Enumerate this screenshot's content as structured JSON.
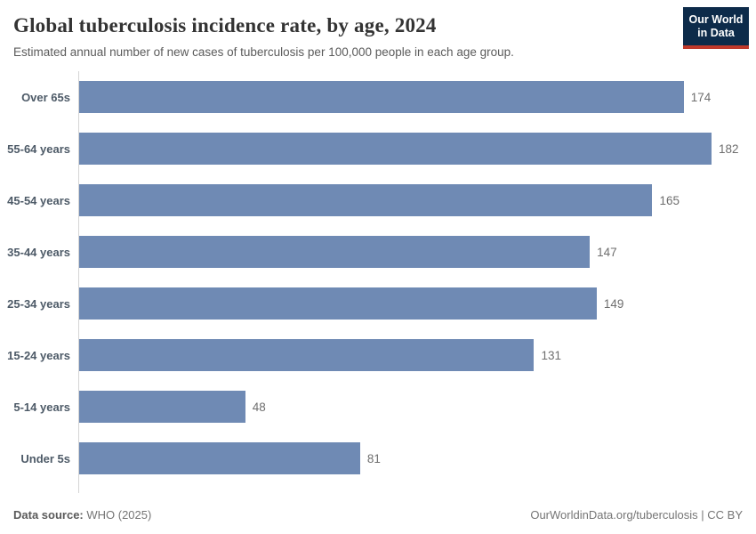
{
  "header": {
    "title": "Global tuberculosis incidence rate, by age, 2024",
    "subtitle": "Estimated annual number of new cases of tuberculosis per 100,000 people in each age group.",
    "logo": {
      "line1": "Our World",
      "line2": "in Data",
      "bg_color": "#0d2b4a",
      "accent_color": "#c0392b"
    }
  },
  "chart_data": {
    "type": "bar",
    "orientation": "horizontal",
    "categories": [
      "Over 65s",
      "55-64 years",
      "45-54 years",
      "35-44 years",
      "25-34 years",
      "15-24 years",
      "5-14 years",
      "Under 5s"
    ],
    "values": [
      174,
      182,
      165,
      147,
      149,
      131,
      48,
      81
    ],
    "title": "Global tuberculosis incidence rate, by age, 2024",
    "xlabel": "",
    "ylabel": "",
    "xlim": [
      0,
      182
    ],
    "bar_color": "#6f8ab4",
    "grid": false,
    "legend": false,
    "value_labels_shown": true
  },
  "footer": {
    "source_label": "Data source:",
    "source_value": " WHO (2025)",
    "attribution": "OurWorldinData.org/tuberculosis | CC BY"
  }
}
